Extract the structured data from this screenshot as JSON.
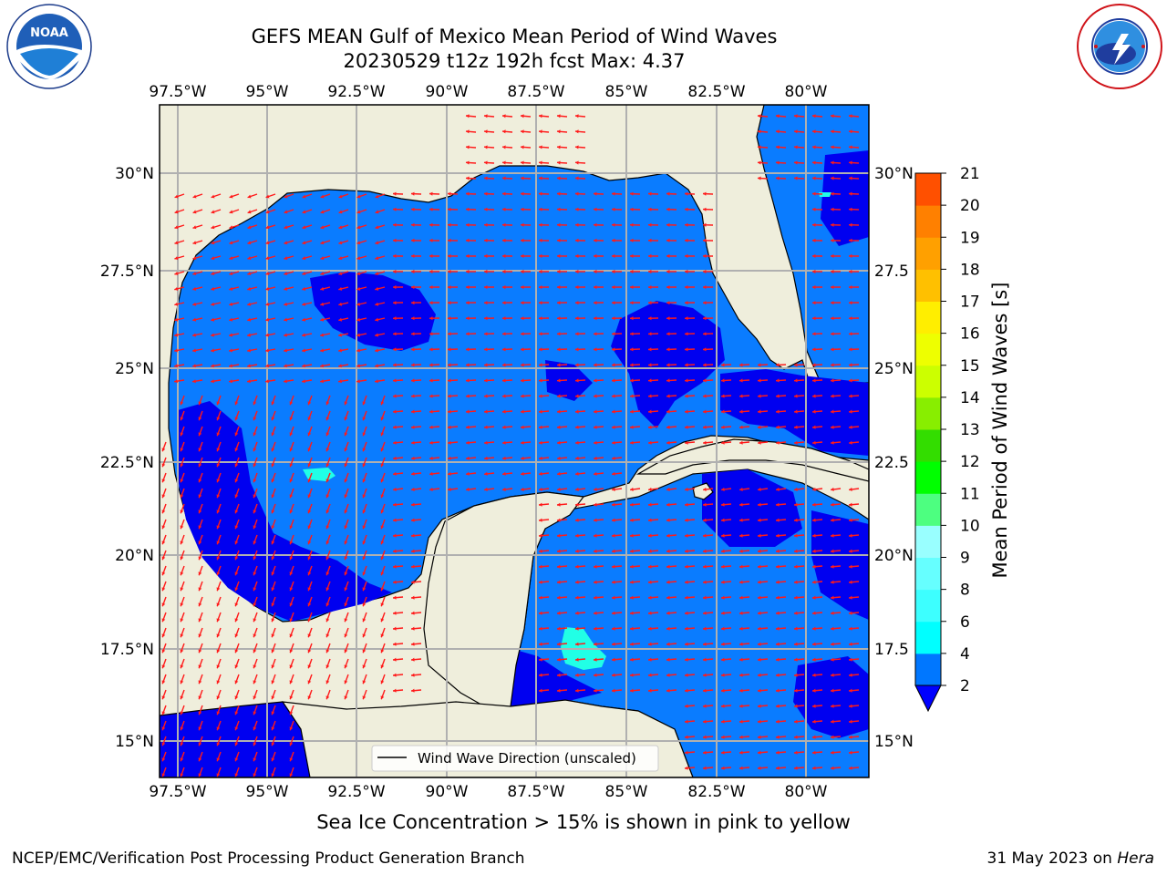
{
  "title_line1": "GEFS MEAN Gulf of Mexico Mean Period of Wind Waves",
  "title_line2": "20230529 t12z 192h fcst   Max: 4.37",
  "logos": {
    "noaa": {
      "text": "NOAA",
      "ring_text": "NATIONAL OCEANIC AND ATMOSPHERIC ADMINISTRATION · U.S. DEPARTMENT OF COMMERCE"
    },
    "nws": {
      "ring_text": "NATIONAL WEATHER SERVICE"
    }
  },
  "map": {
    "lon_labels": [
      "97.5°W",
      "95°W",
      "92.5°W",
      "90°W",
      "87.5°W",
      "85°W",
      "82.5°W",
      "80°W"
    ],
    "lat_labels_left": [
      "30°N",
      "27.5°N",
      "25°N",
      "22.5°N",
      "20°N",
      "17.5°N",
      "15°N"
    ],
    "lat_labels_right": [
      "30°N",
      "27.5",
      "25°N",
      "22.5",
      "20°N",
      "17.5",
      "15°N"
    ],
    "legend_label": "Wind Wave Direction (unscaled)",
    "colors": {
      "land": "#efeedc",
      "ocean_light": "#0a7cff",
      "ocean_dark": "#0000f0",
      "cyan_patch": "#21ffe6",
      "arrow": "#ff1a1a",
      "grid": "#b0b0b0"
    }
  },
  "colorbar": {
    "label": "Mean Period of Wind Waves [s]",
    "ticks": [
      "2",
      "4",
      "6",
      "8",
      "9",
      "10",
      "11",
      "12",
      "13",
      "14",
      "15",
      "16",
      "17",
      "18",
      "19",
      "20",
      "21"
    ],
    "colors": [
      "#0077ff",
      "#00ffff",
      "#3dffff",
      "#66ffff",
      "#99ffff",
      "#4dff80",
      "#00ff00",
      "#33dd00",
      "#88ee00",
      "#ccff00",
      "#eeff00",
      "#ffee00",
      "#ffc000",
      "#ffa000",
      "#ff8000",
      "#ff5000",
      "#ff2000",
      "#ff0000"
    ]
  },
  "bottom_note": "Sea Ice Concentration > 15% is shown in pink to yellow",
  "footer_left": "NCEP/EMC/Verification Post Processing Product Generation Branch",
  "footer_right_date": "31 May 2023 on ",
  "footer_right_host": "Hera"
}
